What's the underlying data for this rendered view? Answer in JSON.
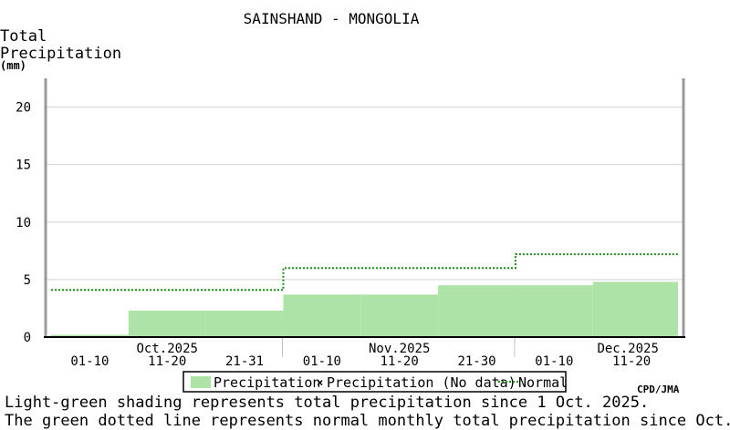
{
  "chart_data": {
    "type": "area",
    "title": "SAINSHAND - MONGOLIA",
    "ylabel_lines": [
      "Total",
      "Precipitation"
    ],
    "yunit": "(mm)",
    "ylim": [
      0,
      22.5
    ],
    "yticks": [
      0,
      5,
      10,
      15,
      20
    ],
    "grid": true,
    "x_periods": [
      "01-10",
      "11-20",
      "21-31",
      "01-10",
      "11-20",
      "21-30",
      "01-10",
      "11-20"
    ],
    "x_months": [
      "Oct.2025",
      "Nov.2025",
      "Dec.2025"
    ],
    "series": [
      {
        "name": "Precipitation",
        "kind": "shaded-step",
        "color": "#aee3a7",
        "values": [
          0.2,
          2.3,
          2.3,
          3.7,
          3.7,
          4.5,
          4.5,
          4.8
        ]
      },
      {
        "name": "Normal",
        "kind": "dotted-step",
        "color": "#1a8a1a",
        "values": [
          4.1,
          4.1,
          4.1,
          6.0,
          6.0,
          6.0,
          7.2,
          7.2
        ]
      }
    ],
    "legend": {
      "placement": "bottom-center",
      "items": [
        "Precipitation",
        "Precipitation (No data)",
        "Normal"
      ]
    },
    "credit": "CPD/JMA",
    "notes": [
      "Light-green shading represents total precipitation since 1 Oct. 2025.",
      "The green dotted line represents normal monthly total precipitation since Oct."
    ]
  }
}
